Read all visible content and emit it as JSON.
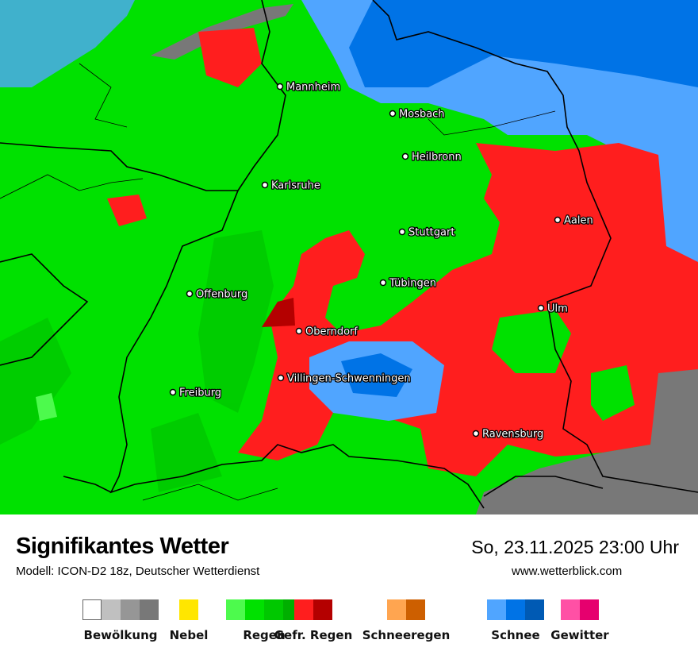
{
  "header": {
    "title": "Signifikantes Wetter",
    "subtitle": "Modell: ICON-D2 18z, Deutscher Wetterdienst",
    "datetime": "So, 23.11.2025 23:00 Uhr",
    "website": "www.wetterblick.com"
  },
  "map": {
    "cities": [
      {
        "name": "Mannheim"
      },
      {
        "name": "Mosbach"
      },
      {
        "name": "Heilbronn"
      },
      {
        "name": "Karlsruhe"
      },
      {
        "name": "Stuttgart"
      },
      {
        "name": "Aalen"
      },
      {
        "name": "Tübingen"
      },
      {
        "name": "Offenburg"
      },
      {
        "name": "Ulm"
      },
      {
        "name": "Oberndorf"
      },
      {
        "name": "Villingen-Schwenningen"
      },
      {
        "name": "Freiburg"
      },
      {
        "name": "Ravensburg"
      }
    ]
  },
  "legend": [
    {
      "label": "Bewölkung",
      "colors": [
        "#ffffff",
        "#c0c0c0",
        "#969696",
        "#787878"
      ]
    },
    {
      "label": "Nebel",
      "colors": [
        "#ffe600"
      ]
    },
    {
      "label": "Regen",
      "colors": [
        "#4dfa4d",
        "#00e100",
        "#00c800",
        "#00af00"
      ]
    },
    {
      "label": "Gefr. Regen",
      "colors": [
        "#ff1e1e",
        "#b40000"
      ]
    },
    {
      "label": "Schneeregen",
      "colors": [
        "#ffa550",
        "#cd5f00"
      ]
    },
    {
      "label": "Schnee",
      "colors": [
        "#50a5ff",
        "#0073e6",
        "#005ab4"
      ]
    },
    {
      "label": "Gewitter",
      "colors": [
        "#ff50a5",
        "#e6006e"
      ]
    }
  ]
}
